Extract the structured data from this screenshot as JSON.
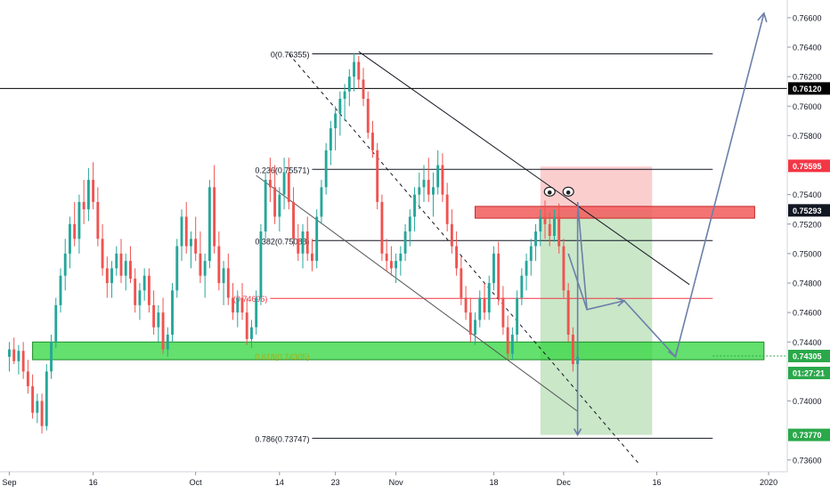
{
  "chart_data": {
    "type": "candlestick",
    "instrument_scale": "price",
    "y_axis": {
      "position": "right",
      "ylim": [
        0.7352,
        0.7672
      ],
      "ticks": [
        "0.76600",
        "0.76400",
        "0.76200",
        "0.76000",
        "0.75800",
        "0.75400",
        "0.75200",
        "0.75000",
        "0.74800",
        "0.74600",
        "0.74400",
        "0.74000",
        "0.73600"
      ],
      "tick_values": [
        0.766,
        0.764,
        0.762,
        0.76,
        0.758,
        0.754,
        0.752,
        0.75,
        0.748,
        0.746,
        0.744,
        0.74,
        0.736
      ]
    },
    "x_axis": {
      "labels": [
        "Sep",
        "16",
        "Oct",
        "14",
        "23",
        "Nov",
        "18",
        "Dec",
        "16",
        "2020"
      ],
      "label_index": [
        0,
        18,
        40,
        58,
        70,
        83,
        104,
        119,
        139,
        163
      ],
      "index_range": [
        -2,
        167
      ]
    },
    "price_tags": [
      {
        "label": "0.76120",
        "value": 0.7612,
        "color": "#000000",
        "text_color": "#ffffff"
      },
      {
        "label": "0.75595",
        "value": 0.75595,
        "color": "#f23645",
        "text_color": "#ffffff"
      },
      {
        "label": "0.75293",
        "value": 0.75293,
        "color": "#131722",
        "text_color": "#ffffff"
      },
      {
        "label": "0.74305",
        "value": 0.74305,
        "color": "#2aa84a",
        "text_color": "#ffffff"
      },
      {
        "label": "01:27:21",
        "value": 0.7419,
        "color": "#2aa84a",
        "text_color": "#ffffff"
      },
      {
        "label": "0.73770",
        "value": 0.7377,
        "color": "#2aa84a",
        "text_color": "#ffffff"
      }
    ],
    "fib_levels": [
      {
        "label": "0(0.76355)",
        "value": 0.76355
      },
      {
        "label": "0.236(0.75571)",
        "value": 0.75571
      },
      {
        "label": "0.382(0.75088)",
        "value": 0.75088
      },
      {
        "label": "(0.74696)",
        "value": 0.74696
      },
      {
        "label": "0.786(0.73747)",
        "value": 0.73747
      }
    ],
    "fib_faded_label": "0.618(0.74305)",
    "zones": {
      "resistance": {
        "from": 0.7524,
        "to": 0.7532
      },
      "support": {
        "from": 0.7428,
        "to": 0.744
      }
    },
    "position": {
      "entry": 0.7529,
      "stop": 0.7559,
      "target": 0.7377,
      "start_index": 114,
      "end_index": 138
    },
    "horizontal_line": 0.7612,
    "candles": [
      [
        0.743,
        0.744,
        0.742,
        0.7435
      ],
      [
        0.7435,
        0.7443,
        0.7425,
        0.7427
      ],
      [
        0.7427,
        0.7438,
        0.7418,
        0.7434
      ],
      [
        0.7434,
        0.744,
        0.7415,
        0.742
      ],
      [
        0.742,
        0.7428,
        0.7405,
        0.741
      ],
      [
        0.741,
        0.7418,
        0.7388,
        0.7392
      ],
      [
        0.7392,
        0.7405,
        0.7385,
        0.74
      ],
      [
        0.74,
        0.7405,
        0.7378,
        0.7383
      ],
      [
        0.7383,
        0.7425,
        0.738,
        0.742
      ],
      [
        0.742,
        0.7445,
        0.7415,
        0.744
      ],
      [
        0.744,
        0.747,
        0.7436,
        0.7465
      ],
      [
        0.7465,
        0.749,
        0.746,
        0.7485
      ],
      [
        0.7485,
        0.751,
        0.7475,
        0.75
      ],
      [
        0.75,
        0.7525,
        0.749,
        0.752
      ],
      [
        0.752,
        0.7535,
        0.7505,
        0.751
      ],
      [
        0.751,
        0.754,
        0.75,
        0.7535
      ],
      [
        0.7535,
        0.755,
        0.752,
        0.753
      ],
      [
        0.753,
        0.7558,
        0.7522,
        0.755
      ],
      [
        0.755,
        0.7562,
        0.753,
        0.7535
      ],
      [
        0.7535,
        0.7545,
        0.7505,
        0.751
      ],
      [
        0.751,
        0.752,
        0.7485,
        0.749
      ],
      [
        0.749,
        0.7498,
        0.747,
        0.748
      ],
      [
        0.748,
        0.7495,
        0.747,
        0.749
      ],
      [
        0.749,
        0.7505,
        0.7485,
        0.75
      ],
      [
        0.75,
        0.751,
        0.748,
        0.7485
      ],
      [
        0.7485,
        0.75,
        0.7475,
        0.7495
      ],
      [
        0.7495,
        0.7505,
        0.748,
        0.7483
      ],
      [
        0.7483,
        0.749,
        0.746,
        0.7465
      ],
      [
        0.7465,
        0.748,
        0.7455,
        0.7475
      ],
      [
        0.7475,
        0.749,
        0.7468,
        0.7485
      ],
      [
        0.7485,
        0.749,
        0.746,
        0.7465
      ],
      [
        0.7465,
        0.7475,
        0.7445,
        0.745
      ],
      [
        0.745,
        0.7465,
        0.744,
        0.746
      ],
      [
        0.746,
        0.747,
        0.7432,
        0.7435
      ],
      [
        0.7435,
        0.745,
        0.743,
        0.7445
      ],
      [
        0.7445,
        0.748,
        0.744,
        0.7475
      ],
      [
        0.7475,
        0.751,
        0.747,
        0.7505
      ],
      [
        0.7505,
        0.753,
        0.7495,
        0.7525
      ],
      [
        0.7525,
        0.7535,
        0.75,
        0.7505
      ],
      [
        0.7505,
        0.7515,
        0.749,
        0.751
      ],
      [
        0.751,
        0.7525,
        0.7495,
        0.75
      ],
      [
        0.75,
        0.7515,
        0.748,
        0.7485
      ],
      [
        0.7485,
        0.75,
        0.747,
        0.7495
      ],
      [
        0.7495,
        0.755,
        0.749,
        0.7545
      ],
      [
        0.7545,
        0.756,
        0.75,
        0.7505
      ],
      [
        0.7505,
        0.7515,
        0.7475,
        0.748
      ],
      [
        0.748,
        0.7495,
        0.7465,
        0.749
      ],
      [
        0.749,
        0.75,
        0.7465,
        0.747
      ],
      [
        0.747,
        0.748,
        0.7455,
        0.746
      ],
      [
        0.746,
        0.7475,
        0.745,
        0.747
      ],
      [
        0.747,
        0.748,
        0.7455,
        0.746
      ],
      [
        0.746,
        0.747,
        0.7438,
        0.7442
      ],
      [
        0.7442,
        0.7455,
        0.7436,
        0.745
      ],
      [
        0.745,
        0.7475,
        0.7445,
        0.747
      ],
      [
        0.747,
        0.752,
        0.7465,
        0.7515
      ],
      [
        0.7515,
        0.7555,
        0.751,
        0.755
      ],
      [
        0.755,
        0.7565,
        0.7535,
        0.7545
      ],
      [
        0.7545,
        0.756,
        0.752,
        0.7525
      ],
      [
        0.7525,
        0.7545,
        0.7515,
        0.754
      ],
      [
        0.754,
        0.7565,
        0.753,
        0.7555
      ],
      [
        0.7555,
        0.7565,
        0.753,
        0.7535
      ],
      [
        0.7535,
        0.7545,
        0.7505,
        0.751
      ],
      [
        0.751,
        0.752,
        0.7495,
        0.75
      ],
      [
        0.75,
        0.752,
        0.749,
        0.7515
      ],
      [
        0.7515,
        0.7525,
        0.7495,
        0.75
      ],
      [
        0.75,
        0.751,
        0.7488,
        0.7495
      ],
      [
        0.7495,
        0.753,
        0.749,
        0.7525
      ],
      [
        0.7525,
        0.755,
        0.752,
        0.7545
      ],
      [
        0.7545,
        0.7575,
        0.754,
        0.757
      ],
      [
        0.757,
        0.759,
        0.756,
        0.7585
      ],
      [
        0.7585,
        0.76,
        0.757,
        0.7595
      ],
      [
        0.7595,
        0.761,
        0.758,
        0.7605
      ],
      [
        0.7605,
        0.7615,
        0.759,
        0.761
      ],
      [
        0.761,
        0.7625,
        0.76,
        0.762
      ],
      [
        0.762,
        0.7636,
        0.761,
        0.763
      ],
      [
        0.763,
        0.7634,
        0.7612,
        0.7618
      ],
      [
        0.7618,
        0.7626,
        0.76,
        0.7605
      ],
      [
        0.7605,
        0.761,
        0.7578,
        0.7582
      ],
      [
        0.7582,
        0.759,
        0.7565,
        0.757
      ],
      [
        0.757,
        0.7575,
        0.753,
        0.7535
      ],
      [
        0.7535,
        0.754,
        0.7495,
        0.75
      ],
      [
        0.75,
        0.751,
        0.7488,
        0.7495
      ],
      [
        0.7495,
        0.7505,
        0.7485,
        0.749
      ],
      [
        0.749,
        0.75,
        0.748,
        0.7495
      ],
      [
        0.7495,
        0.7505,
        0.7485,
        0.75
      ],
      [
        0.75,
        0.752,
        0.7495,
        0.7515
      ],
      [
        0.7515,
        0.753,
        0.7505,
        0.7525
      ],
      [
        0.7525,
        0.7545,
        0.7515,
        0.754
      ],
      [
        0.754,
        0.7555,
        0.753,
        0.7545
      ],
      [
        0.7545,
        0.756,
        0.7535,
        0.755
      ],
      [
        0.755,
        0.7565,
        0.7535,
        0.754
      ],
      [
        0.754,
        0.7555,
        0.7525,
        0.7545
      ],
      [
        0.7545,
        0.757,
        0.754,
        0.756
      ],
      [
        0.756,
        0.7568,
        0.7535,
        0.754
      ],
      [
        0.754,
        0.7548,
        0.7515,
        0.752
      ],
      [
        0.752,
        0.753,
        0.75,
        0.7505
      ],
      [
        0.7505,
        0.7515,
        0.7485,
        0.749
      ],
      [
        0.749,
        0.7498,
        0.7465,
        0.747
      ],
      [
        0.747,
        0.7478,
        0.7455,
        0.746
      ],
      [
        0.746,
        0.747,
        0.744,
        0.7445
      ],
      [
        0.7445,
        0.746,
        0.7438,
        0.7455
      ],
      [
        0.7455,
        0.7475,
        0.745,
        0.747
      ],
      [
        0.747,
        0.748,
        0.7455,
        0.746
      ],
      [
        0.746,
        0.7485,
        0.7455,
        0.748
      ],
      [
        0.748,
        0.7505,
        0.7475,
        0.75
      ],
      [
        0.75,
        0.7508,
        0.7465,
        0.747
      ],
      [
        0.747,
        0.7478,
        0.7445,
        0.745
      ],
      [
        0.745,
        0.7458,
        0.7428,
        0.7432
      ],
      [
        0.7432,
        0.745,
        0.7428,
        0.7445
      ],
      [
        0.7445,
        0.7475,
        0.744,
        0.747
      ],
      [
        0.747,
        0.749,
        0.7465,
        0.7485
      ],
      [
        0.7485,
        0.75,
        0.7475,
        0.7495
      ],
      [
        0.7495,
        0.751,
        0.7485,
        0.7505
      ],
      [
        0.7505,
        0.752,
        0.7495,
        0.7515
      ],
      [
        0.7515,
        0.753,
        0.7505,
        0.7525
      ],
      [
        0.7525,
        0.7536,
        0.751,
        0.752
      ],
      [
        0.752,
        0.7528,
        0.7505,
        0.7512
      ],
      [
        0.7512,
        0.753,
        0.7508,
        0.7525
      ],
      [
        0.7525,
        0.7534,
        0.75,
        0.7505
      ],
      [
        0.7505,
        0.751,
        0.747,
        0.7475
      ],
      [
        0.7475,
        0.748,
        0.744,
        0.7445
      ],
      [
        0.7445,
        0.745,
        0.742,
        0.7425
      ],
      [
        0.7425,
        0.744,
        0.7415,
        0.743
      ]
    ]
  }
}
